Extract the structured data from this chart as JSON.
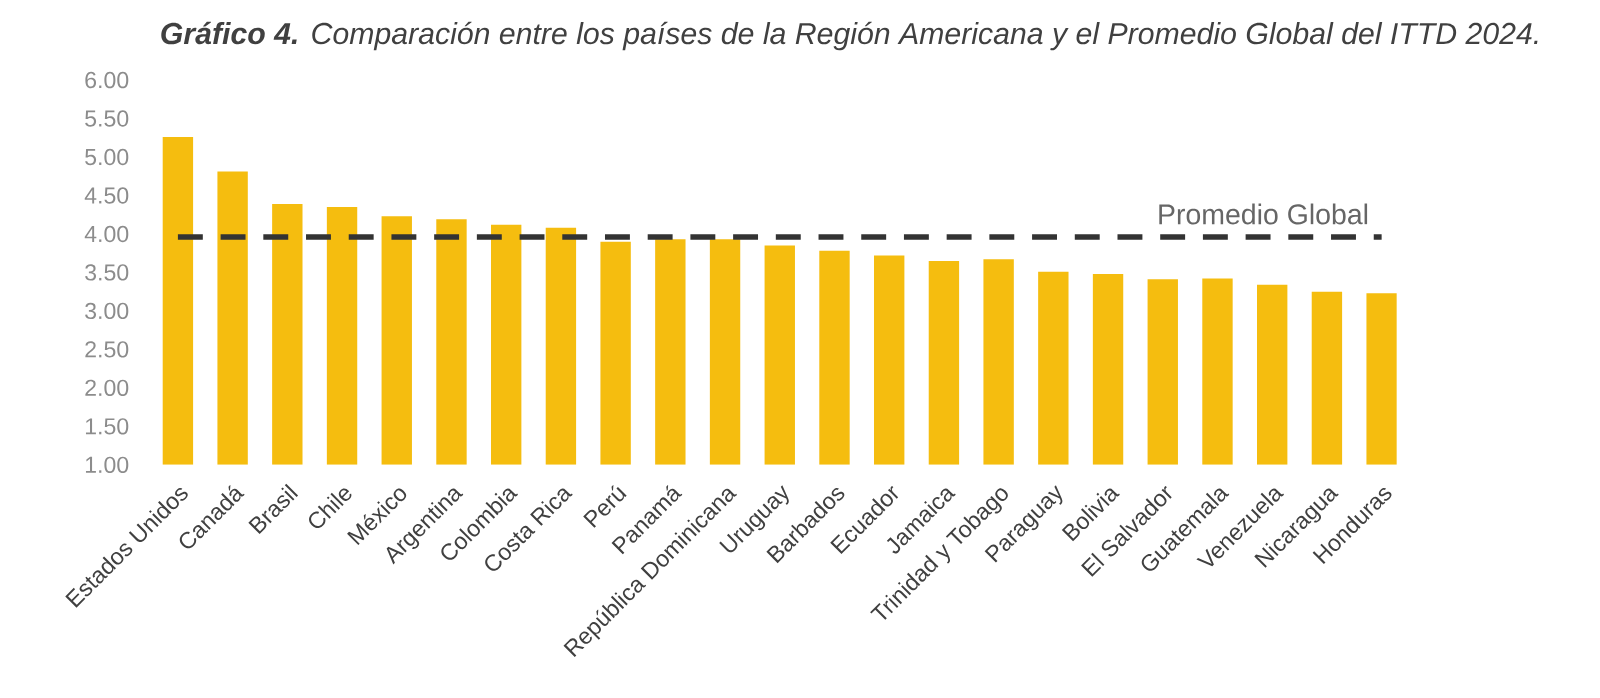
{
  "chart_data": {
    "type": "bar",
    "title": "**Gráfico 4.** Comparación entre los países de la Región Americana y el Promedio Global del ITTD 2024.",
    "categories": [
      "Estados Unidos",
      "Canadá",
      "Brasil",
      "Chile",
      "México",
      "Argentina",
      "Colombia",
      "Costa Rica",
      "Perú",
      "Panamá",
      "República Dominicana",
      "Uruguay",
      "Barbados",
      "Ecuador",
      "Jamaica",
      "Trinidad y Tobago",
      "Paraguay",
      "Bolivia",
      "El Salvador",
      "Guatemala",
      "Venezuela",
      "Nicaragua",
      "Honduras"
    ],
    "values": [
      5.26,
      4.81,
      4.39,
      4.35,
      4.23,
      4.19,
      4.12,
      4.08,
      3.9,
      3.93,
      3.93,
      3.85,
      3.78,
      3.72,
      3.65,
      3.67,
      3.51,
      3.48,
      3.41,
      3.42,
      3.34,
      3.25,
      3.23
    ],
    "color": "#f5bd0f",
    "ylim": [
      1,
      6
    ],
    "yticks": [
      {
        "value": 1,
        "label": "1.00"
      },
      {
        "value": 1.5,
        "label": "1.50"
      },
      {
        "value": 2,
        "label": "2.00"
      },
      {
        "value": 2.5,
        "label": "2.50"
      },
      {
        "value": 3,
        "label": "3.00"
      },
      {
        "value": 3.5,
        "label": "3.50"
      },
      {
        "value": 4,
        "label": "4.00"
      },
      {
        "value": 4.5,
        "label": "4.50"
      },
      {
        "value": 5,
        "label": "5.00"
      },
      {
        "value": 5.5,
        "label": "5.50"
      },
      {
        "value": 6,
        "label": "6.00"
      }
    ],
    "ref_lines": [
      {
        "axis": "y",
        "value": 3.96,
        "label": "Promedio Global",
        "color": "#333333",
        "line_style": "dashed"
      }
    ],
    "grid": false
  }
}
